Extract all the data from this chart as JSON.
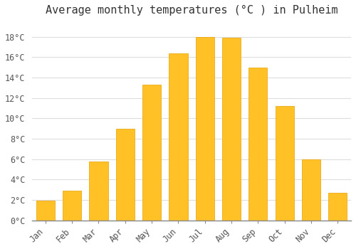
{
  "title": "Average monthly temperatures (°C ) in Pulheim",
  "months": [
    "Jan",
    "Feb",
    "Mar",
    "Apr",
    "May",
    "Jun",
    "Jul",
    "Aug",
    "Sep",
    "Oct",
    "Nov",
    "Dec"
  ],
  "values": [
    1.9,
    2.9,
    5.8,
    9.0,
    13.3,
    16.4,
    18.0,
    17.9,
    15.0,
    11.2,
    6.0,
    2.7
  ],
  "bar_color": "#FFC125",
  "bar_edge_color": "#E8A000",
  "background_color": "#FFFFFF",
  "grid_color": "#DDDDDD",
  "ylim": [
    0,
    19.5
  ],
  "yticks": [
    0,
    2,
    4,
    6,
    8,
    10,
    12,
    14,
    16,
    18
  ],
  "ylabel_suffix": "°C",
  "title_fontsize": 11,
  "tick_fontsize": 8.5,
  "font_family": "monospace"
}
